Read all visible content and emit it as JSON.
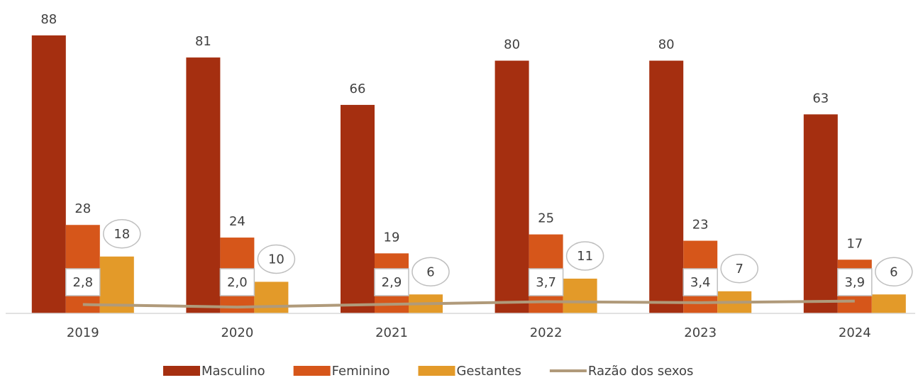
{
  "chart_data": {
    "type": "bar-line",
    "categories": [
      "2019",
      "2020",
      "2021",
      "2022",
      "2023",
      "2024"
    ],
    "series": [
      {
        "name": "Masculino",
        "color": "#a52f10",
        "values": [
          88,
          81,
          66,
          80,
          80,
          63
        ]
      },
      {
        "name": "Feminino",
        "color": "#d6561a",
        "values": [
          28,
          24,
          19,
          25,
          23,
          17
        ]
      },
      {
        "name": "Gestantes",
        "color": "#e39a29",
        "values": [
          18,
          10,
          6,
          11,
          7,
          6
        ]
      },
      {
        "name": "Razão dos sexos",
        "color": "#b09a7a",
        "type": "line",
        "values": [
          2.8,
          2.0,
          2.9,
          3.7,
          3.4,
          3.9
        ],
        "value_labels": [
          "2,8",
          "2,0",
          "2,9",
          "3,7",
          "3,4",
          "3,9"
        ]
      }
    ],
    "ylim": [
      0,
      90
    ],
    "legend": "bottom"
  }
}
